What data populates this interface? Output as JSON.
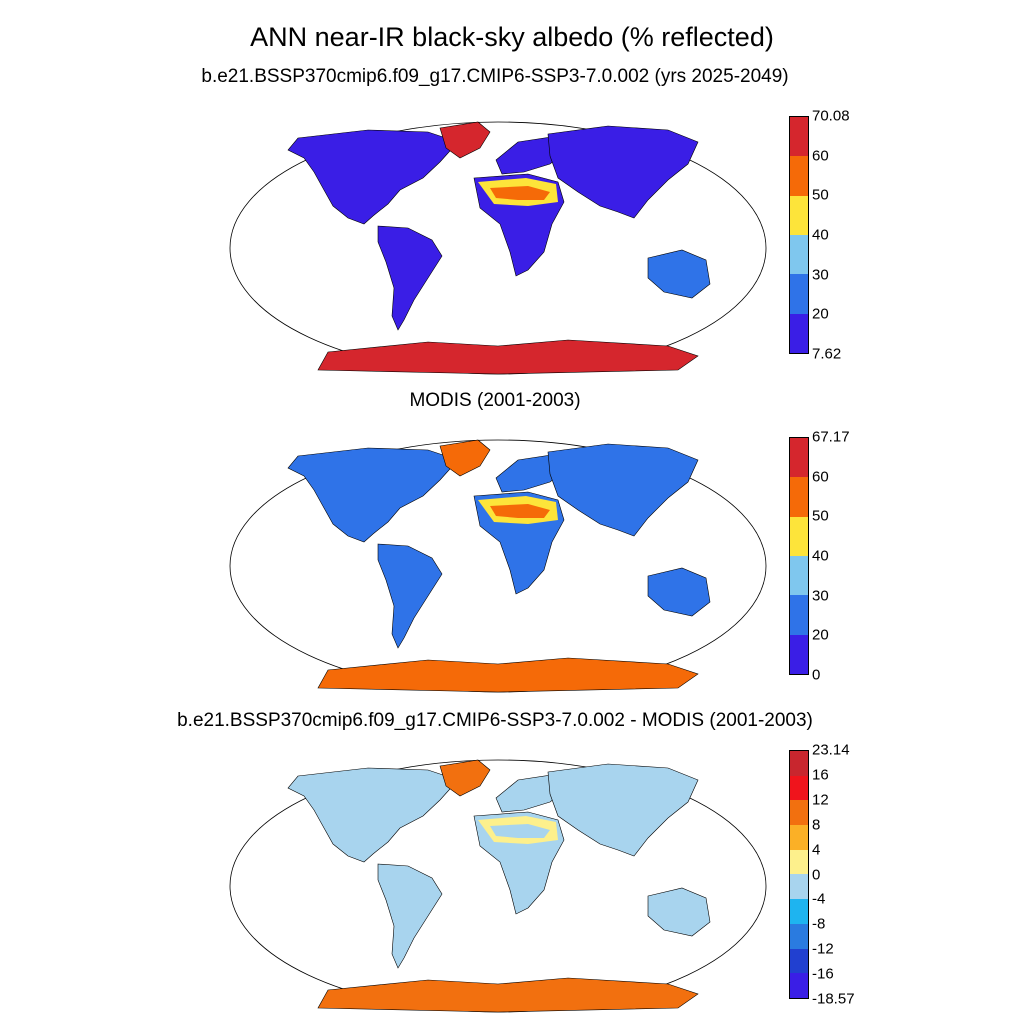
{
  "title": "ANN near-IR black-sky albedo (% reflected)",
  "panels": [
    {
      "id": "p1",
      "subtitle": "b.e21.BSSP370cmip6.f09_g17.CMIP6-SSP3-7.0.002 (yrs 2025-2049)",
      "colorbar": {
        "colors": [
          "#3a1ee6",
          "#2f73e8",
          "#7fc7ee",
          "#fde43a",
          "#f56a08",
          "#d5262d"
        ],
        "labels": [
          "70.08",
          "60",
          "50",
          "40",
          "30",
          "20",
          "7.62"
        ]
      },
      "regions": {
        "ocean": "#ffffff",
        "north_america": "#3a1ee6",
        "greenland": "#d5262d",
        "south_america": "#3a1ee6",
        "europe": "#3a1ee6",
        "asia": "#3a1ee6",
        "africa": "#3a1ee6",
        "sahara": "#fde43a",
        "sahara_core": "#f56a08",
        "australia": "#2f73e8",
        "antarctica": "#d5262d"
      }
    },
    {
      "id": "p2",
      "subtitle": "MODIS (2001-2003)",
      "colorbar": {
        "colors": [
          "#3a1ee6",
          "#2f73e8",
          "#7fc7ee",
          "#fde43a",
          "#f56a08",
          "#d5262d"
        ],
        "labels": [
          "67.17",
          "60",
          "50",
          "40",
          "30",
          "20",
          "0"
        ]
      },
      "regions": {
        "ocean": "#ffffff",
        "north_america": "#2f73e8",
        "greenland": "#f56a08",
        "south_america": "#2f73e8",
        "europe": "#2f73e8",
        "asia": "#2f73e8",
        "africa": "#2f73e8",
        "sahara": "#fde43a",
        "sahara_core": "#f56a08",
        "australia": "#2f73e8",
        "antarctica": "#f56a08"
      }
    },
    {
      "id": "p3",
      "subtitle": "b.e21.BSSP370cmip6.f09_g17.CMIP6-SSP3-7.0.002 - MODIS (2001-2003)",
      "colorbar": {
        "colors": [
          "#3a1ee6",
          "#2140d0",
          "#2a7be0",
          "#1eb4f0",
          "#a8d4ee",
          "#fdf08c",
          "#fbb026",
          "#f2700f",
          "#f0141c",
          "#c8262e"
        ],
        "labels": [
          "23.14",
          "16",
          "12",
          "8",
          "4",
          "0",
          "-4",
          "-8",
          "-12",
          "-16",
          "-18.57"
        ]
      },
      "regions": {
        "ocean": "#ffffff",
        "north_america": "#a8d4ee",
        "greenland": "#f2700f",
        "south_america": "#a8d4ee",
        "europe": "#a8d4ee",
        "asia": "#a8d4ee",
        "africa": "#a8d4ee",
        "sahara": "#fdf08c",
        "sahara_core": "#a8d4ee",
        "australia": "#a8d4ee",
        "antarctica": "#f2700f"
      }
    }
  ]
}
